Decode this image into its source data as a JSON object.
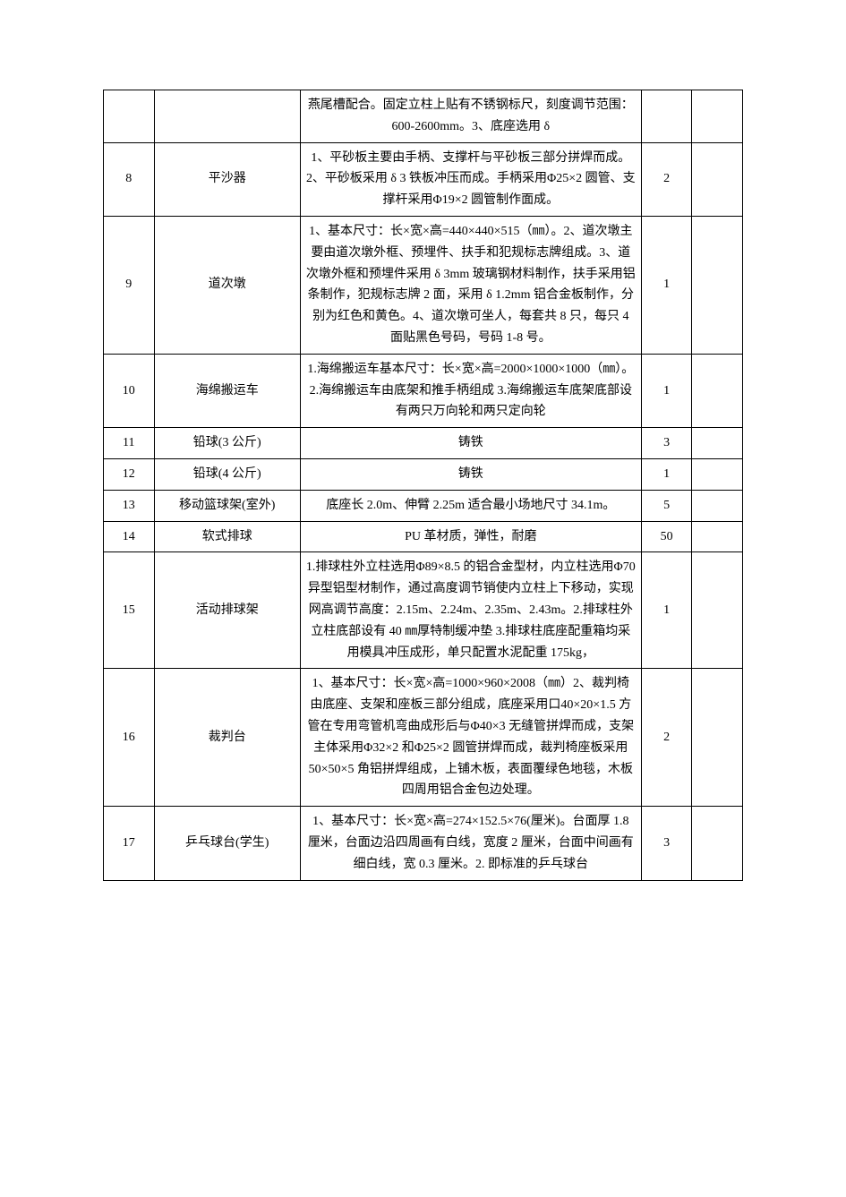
{
  "table": {
    "columns": {
      "idx_width": 52,
      "name_width": 150,
      "desc_width": 350,
      "qty_width": 52,
      "last_width": 52
    },
    "border_color": "#000000",
    "font_size": 14,
    "font_family": "SimSun",
    "line_height": 1.7,
    "rows": [
      {
        "idx": "",
        "name": "",
        "desc": "燕尾槽配合。固定立柱上贴有不锈钢标尺，刻度调节范围：600-2600mm。3、底座选用 δ",
        "qty": "",
        "last": ""
      },
      {
        "idx": "8",
        "name": "平沙器",
        "desc": "1、平砂板主要由手柄、支撑杆与平砂板三部分拼焊而成。2、平砂板采用 δ 3 铁板冲压而成。手柄采用Φ25×2 圆管、支撑杆采用Φ19×2 圆管制作面成。",
        "qty": "2",
        "last": ""
      },
      {
        "idx": "9",
        "name": "道次墩",
        "desc": "1、基本尺寸：长×宽×高=440×440×515（㎜）。2、道次墩主要由道次墩外框、预埋件、扶手和犯规标志牌组成。3、道次墩外框和预埋件采用 δ 3mm 玻璃钢材料制作，扶手采用铝条制作，犯规标志牌 2 面，采用 δ 1.2mm 铝合金板制作，分别为红色和黄色。4、道次墩可坐人，每套共 8 只，每只 4 面贴黑色号码，号码 1-8 号。",
        "qty": "1",
        "last": ""
      },
      {
        "idx": "10",
        "name": "海绵搬运车",
        "desc": "1.海绵搬运车基本尺寸：长×宽×高=2000×1000×1000（㎜）。2.海绵搬运车由底架和推手柄组成 3.海绵搬运车底架底部设有两只万向轮和两只定向轮",
        "qty": "1",
        "last": ""
      },
      {
        "idx": "11",
        "name": "铅球(3 公斤)",
        "desc": "铸铁",
        "qty": "3",
        "last": ""
      },
      {
        "idx": "12",
        "name": "铅球(4 公斤)",
        "desc": "铸铁",
        "qty": "1",
        "last": ""
      },
      {
        "idx": "13",
        "name": "移动篮球架(室外)",
        "desc": "底座长 2.0m、伸臂 2.25m 适合最小场地尺寸 34.1m。",
        "qty": "5",
        "last": ""
      },
      {
        "idx": "14",
        "name": "软式排球",
        "desc": "PU 革材质，弹性，耐磨",
        "qty": "50",
        "last": ""
      },
      {
        "idx": "15",
        "name": "活动排球架",
        "desc": "1.排球柱外立柱选用Φ89×8.5 的铝合金型材，内立柱选用Φ70 异型铝型材制作，通过高度调节销使内立柱上下移动，实现网高调节高度：2.15m、2.24m、2.35m、2.43m。2.排球柱外立柱底部设有 40 ㎜厚特制缓冲垫 3.排球柱底座配重箱均采用模具冲压成形，单只配置水泥配重 175kg，",
        "qty": "1",
        "last": ""
      },
      {
        "idx": "16",
        "name": "裁判台",
        "desc": "1、基本尺寸：长×宽×高=1000×960×2008（㎜）2、裁判椅由底座、支架和座板三部分组成，底座采用口40×20×1.5 方管在专用弯管机弯曲成形后与Φ40×3 无缝管拼焊而成，支架主体采用Φ32×2 和Φ25×2 圆管拼焊而成，裁判椅座板采用 50×50×5 角铝拼焊组成，上铺木板，表面覆绿色地毯，木板四周用铝合金包边处理。",
        "qty": "2",
        "last": ""
      },
      {
        "idx": "17",
        "name": "乒乓球台(学生)",
        "desc": "1、基本尺寸：长×宽×高=274×152.5×76(厘米)。台面厚 1.8 厘米，台面边沿四周画有白线，宽度 2 厘米，台面中间画有细白线，宽 0.3 厘米。2. 即标准的乒乓球台",
        "qty": "3",
        "last": ""
      }
    ]
  }
}
